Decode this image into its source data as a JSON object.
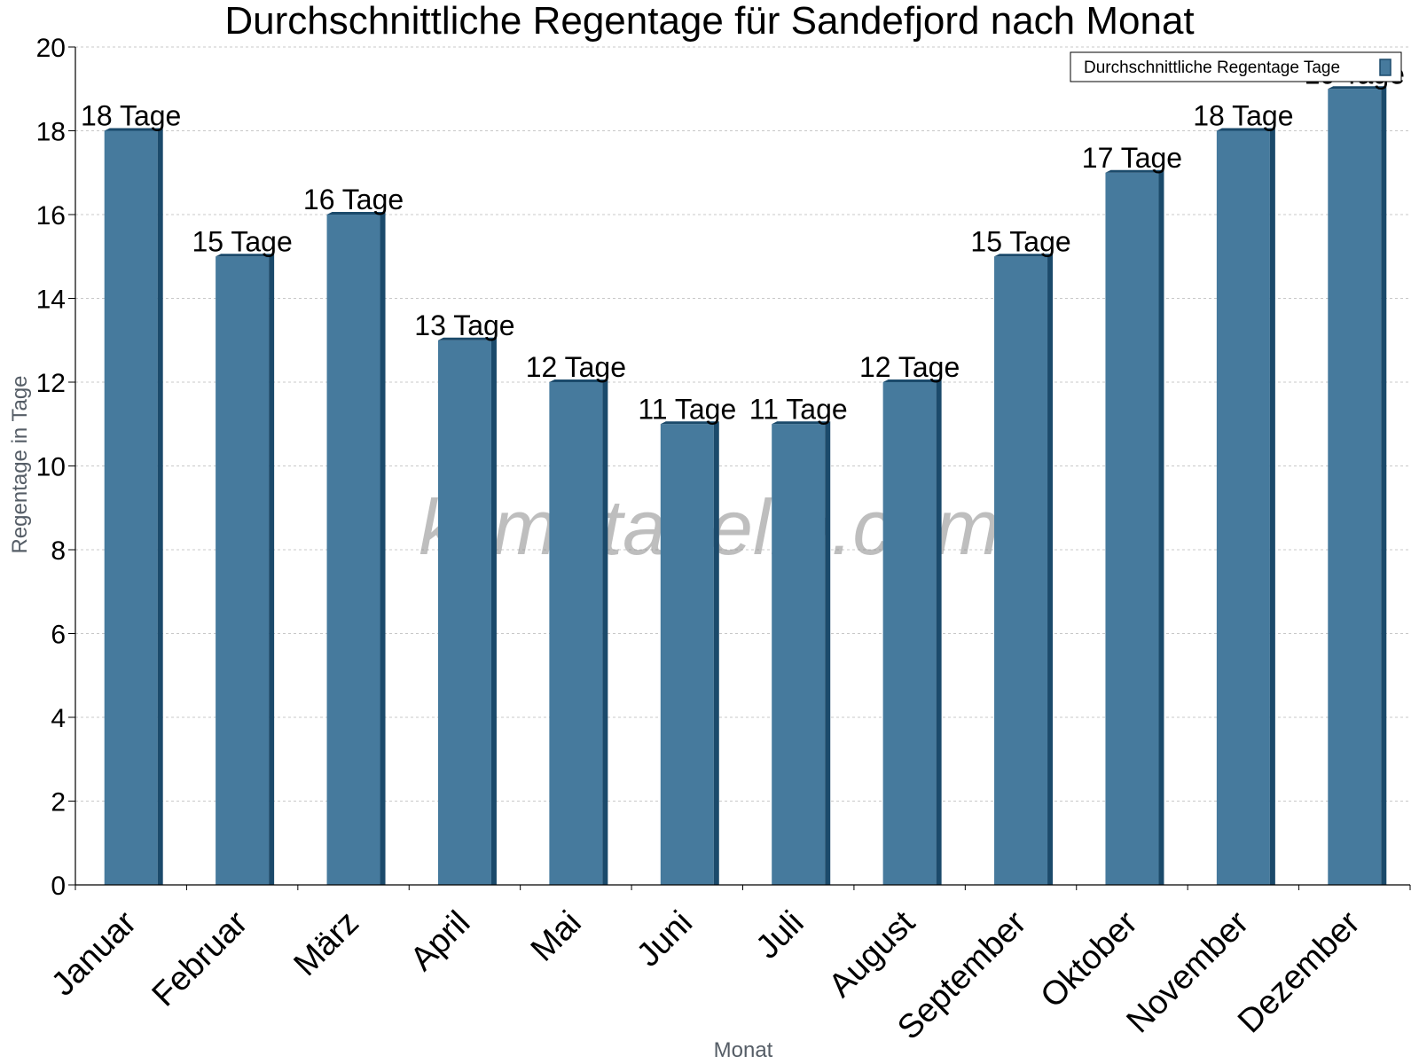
{
  "chart_data": {
    "type": "bar",
    "title": "Durchschnittliche Regentage für Sandefjord nach Monat",
    "xlabel": "Monat",
    "ylabel": "Regentage in Tage",
    "ylim": [
      0,
      20
    ],
    "yticks": [
      0,
      2,
      4,
      6,
      8,
      10,
      12,
      14,
      16,
      18,
      20
    ],
    "categories": [
      "Januar",
      "Februar",
      "März",
      "April",
      "Mai",
      "Juni",
      "Juli",
      "August",
      "September",
      "Oktober",
      "November",
      "Dezember"
    ],
    "series": [
      {
        "name": "Durchschnittliche Regentage Tage",
        "values": [
          18,
          15,
          16,
          13,
          12,
          11,
          11,
          12,
          15,
          17,
          18,
          19
        ],
        "labels": [
          "18 Tage",
          "15 Tage",
          "16 Tage",
          "13 Tage",
          "12 Tage",
          "11 Tage",
          "11 Tage",
          "12 Tage",
          "15 Tage",
          "17 Tage",
          "18 Tage",
          "19 Tage"
        ],
        "color": "#467a9d",
        "edge_color": "#1b4a6b"
      }
    ],
    "grid": true,
    "legend": "top-right",
    "watermark": "klimatabelle.com"
  }
}
